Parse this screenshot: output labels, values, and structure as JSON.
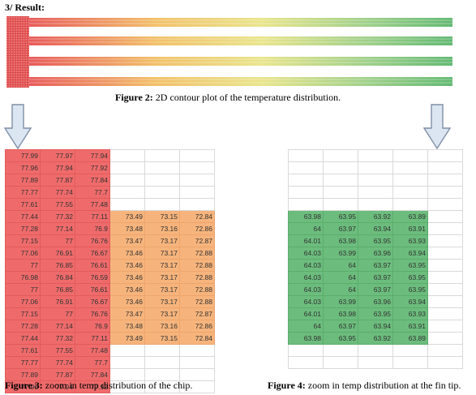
{
  "heading": "3/ Result:",
  "figure2": {
    "label": "Figure 2:",
    "text": " 2D contour plot of the temperature distribution."
  },
  "figure3": {
    "label": "Figure 3:",
    "text": " zoom in temp distribution of the chip."
  },
  "figure4": {
    "label": "Figure 4:",
    "text": " zoom in temp distribution at the fin tip."
  },
  "colors": {
    "hot": "#ef6b6b",
    "warm": "#f6b47c",
    "cool": "#6cbd7d",
    "grid": "#d9d9d9",
    "arrow_fill": "#dce6f2",
    "arrow_stroke": "#7f8fa6"
  },
  "icons": {
    "arrow": "down-arrow-icon"
  },
  "contour": {
    "fins": 4,
    "gradient": [
      "#e85b5b",
      "#f2c16a",
      "#e9e58c",
      "#9fd08a",
      "#63b973"
    ]
  },
  "chip_table": {
    "rows": [
      [
        {
          "v": "77.99",
          "c": "r"
        },
        {
          "v": "77.97",
          "c": "r"
        },
        {
          "v": "77.94",
          "c": "r"
        },
        {
          "v": "",
          "c": ""
        },
        {
          "v": "",
          "c": ""
        },
        {
          "v": "",
          "c": ""
        }
      ],
      [
        {
          "v": "77.96",
          "c": "r"
        },
        {
          "v": "77.94",
          "c": "r"
        },
        {
          "v": "77.92",
          "c": "r"
        },
        {
          "v": "",
          "c": ""
        },
        {
          "v": "",
          "c": ""
        },
        {
          "v": "",
          "c": ""
        }
      ],
      [
        {
          "v": "77.89",
          "c": "r"
        },
        {
          "v": "77.87",
          "c": "r"
        },
        {
          "v": "77.84",
          "c": "r"
        },
        {
          "v": "",
          "c": ""
        },
        {
          "v": "",
          "c": ""
        },
        {
          "v": "",
          "c": ""
        }
      ],
      [
        {
          "v": "77.77",
          "c": "r"
        },
        {
          "v": "77.74",
          "c": "r"
        },
        {
          "v": "77.7",
          "c": "r"
        },
        {
          "v": "",
          "c": ""
        },
        {
          "v": "",
          "c": ""
        },
        {
          "v": "",
          "c": ""
        }
      ],
      [
        {
          "v": "77.61",
          "c": "r"
        },
        {
          "v": "77.55",
          "c": "r"
        },
        {
          "v": "77.48",
          "c": "r"
        },
        {
          "v": "",
          "c": ""
        },
        {
          "v": "",
          "c": ""
        },
        {
          "v": "",
          "c": ""
        }
      ],
      [
        {
          "v": "77.44",
          "c": "r"
        },
        {
          "v": "77.32",
          "c": "r"
        },
        {
          "v": "77.11",
          "c": "r"
        },
        {
          "v": "73.49",
          "c": "o"
        },
        {
          "v": "73.15",
          "c": "o"
        },
        {
          "v": "72.84",
          "c": "o"
        }
      ],
      [
        {
          "v": "77.28",
          "c": "r"
        },
        {
          "v": "77.14",
          "c": "r"
        },
        {
          "v": "76.9",
          "c": "r"
        },
        {
          "v": "73.48",
          "c": "o"
        },
        {
          "v": "73.16",
          "c": "o"
        },
        {
          "v": "72.86",
          "c": "o"
        }
      ],
      [
        {
          "v": "77.15",
          "c": "r"
        },
        {
          "v": "77",
          "c": "r"
        },
        {
          "v": "76.76",
          "c": "r"
        },
        {
          "v": "73.47",
          "c": "o"
        },
        {
          "v": "73.17",
          "c": "o"
        },
        {
          "v": "72.87",
          "c": "o"
        }
      ],
      [
        {
          "v": "77.06",
          "c": "r"
        },
        {
          "v": "76.91",
          "c": "r"
        },
        {
          "v": "76.67",
          "c": "r"
        },
        {
          "v": "73.46",
          "c": "o"
        },
        {
          "v": "73.17",
          "c": "o"
        },
        {
          "v": "72.88",
          "c": "o"
        }
      ],
      [
        {
          "v": "77",
          "c": "r"
        },
        {
          "v": "76.85",
          "c": "r"
        },
        {
          "v": "76.61",
          "c": "r"
        },
        {
          "v": "73.46",
          "c": "o"
        },
        {
          "v": "73.17",
          "c": "o"
        },
        {
          "v": "72.88",
          "c": "o"
        }
      ],
      [
        {
          "v": "76.98",
          "c": "r"
        },
        {
          "v": "76.84",
          "c": "r"
        },
        {
          "v": "76.59",
          "c": "r"
        },
        {
          "v": "73.46",
          "c": "o"
        },
        {
          "v": "73.17",
          "c": "o"
        },
        {
          "v": "72.88",
          "c": "o"
        }
      ],
      [
        {
          "v": "77",
          "c": "r"
        },
        {
          "v": "76.85",
          "c": "r"
        },
        {
          "v": "76.61",
          "c": "r"
        },
        {
          "v": "73.46",
          "c": "o"
        },
        {
          "v": "73.17",
          "c": "o"
        },
        {
          "v": "72.88",
          "c": "o"
        }
      ],
      [
        {
          "v": "77.06",
          "c": "r"
        },
        {
          "v": "76.91",
          "c": "r"
        },
        {
          "v": "76.67",
          "c": "r"
        },
        {
          "v": "73.46",
          "c": "o"
        },
        {
          "v": "73.17",
          "c": "o"
        },
        {
          "v": "72.88",
          "c": "o"
        }
      ],
      [
        {
          "v": "77.15",
          "c": "r"
        },
        {
          "v": "77",
          "c": "r"
        },
        {
          "v": "76.76",
          "c": "r"
        },
        {
          "v": "73.47",
          "c": "o"
        },
        {
          "v": "73.17",
          "c": "o"
        },
        {
          "v": "72.87",
          "c": "o"
        }
      ],
      [
        {
          "v": "77.28",
          "c": "r"
        },
        {
          "v": "77.14",
          "c": "r"
        },
        {
          "v": "76.9",
          "c": "r"
        },
        {
          "v": "73.48",
          "c": "o"
        },
        {
          "v": "73.16",
          "c": "o"
        },
        {
          "v": "72.86",
          "c": "o"
        }
      ],
      [
        {
          "v": "77.44",
          "c": "r"
        },
        {
          "v": "77.32",
          "c": "r"
        },
        {
          "v": "77.11",
          "c": "r"
        },
        {
          "v": "73.49",
          "c": "o"
        },
        {
          "v": "73.15",
          "c": "o"
        },
        {
          "v": "72.84",
          "c": "o"
        }
      ],
      [
        {
          "v": "77.61",
          "c": "r"
        },
        {
          "v": "77.55",
          "c": "r"
        },
        {
          "v": "77.48",
          "c": "r"
        },
        {
          "v": "",
          "c": ""
        },
        {
          "v": "",
          "c": ""
        },
        {
          "v": "",
          "c": ""
        }
      ],
      [
        {
          "v": "77.77",
          "c": "r"
        },
        {
          "v": "77.74",
          "c": "r"
        },
        {
          "v": "77.7",
          "c": "r"
        },
        {
          "v": "",
          "c": ""
        },
        {
          "v": "",
          "c": ""
        },
        {
          "v": "",
          "c": ""
        }
      ],
      [
        {
          "v": "77.89",
          "c": "r"
        },
        {
          "v": "77.87",
          "c": "r"
        },
        {
          "v": "77.84",
          "c": "r"
        },
        {
          "v": "",
          "c": ""
        },
        {
          "v": "",
          "c": ""
        },
        {
          "v": "",
          "c": ""
        }
      ],
      [
        {
          "v": "77.96",
          "c": "r"
        },
        {
          "v": "77.94",
          "c": "r"
        },
        {
          "v": "77.92",
          "c": "r"
        },
        {
          "v": "",
          "c": ""
        },
        {
          "v": "",
          "c": ""
        },
        {
          "v": "",
          "c": ""
        }
      ]
    ]
  },
  "fin_table": {
    "rows": [
      [
        {
          "v": "",
          "c": ""
        },
        {
          "v": "",
          "c": ""
        },
        {
          "v": "",
          "c": ""
        },
        {
          "v": "",
          "c": ""
        },
        {
          "v": "",
          "c": ""
        }
      ],
      [
        {
          "v": "",
          "c": ""
        },
        {
          "v": "",
          "c": ""
        },
        {
          "v": "",
          "c": ""
        },
        {
          "v": "",
          "c": ""
        },
        {
          "v": "",
          "c": ""
        }
      ],
      [
        {
          "v": "",
          "c": ""
        },
        {
          "v": "",
          "c": ""
        },
        {
          "v": "",
          "c": ""
        },
        {
          "v": "",
          "c": ""
        },
        {
          "v": "",
          "c": ""
        }
      ],
      [
        {
          "v": "",
          "c": ""
        },
        {
          "v": "",
          "c": ""
        },
        {
          "v": "",
          "c": ""
        },
        {
          "v": "",
          "c": ""
        },
        {
          "v": "",
          "c": ""
        }
      ],
      [
        {
          "v": "",
          "c": ""
        },
        {
          "v": "",
          "c": ""
        },
        {
          "v": "",
          "c": ""
        },
        {
          "v": "",
          "c": ""
        },
        {
          "v": "",
          "c": ""
        }
      ],
      [
        {
          "v": "63.98",
          "c": "g"
        },
        {
          "v": "63.95",
          "c": "g"
        },
        {
          "v": "63.92",
          "c": "g"
        },
        {
          "v": "63.89",
          "c": "g"
        },
        {
          "v": "",
          "c": ""
        }
      ],
      [
        {
          "v": "64",
          "c": "g"
        },
        {
          "v": "63.97",
          "c": "g"
        },
        {
          "v": "63.94",
          "c": "g"
        },
        {
          "v": "63.91",
          "c": "g"
        },
        {
          "v": "",
          "c": ""
        }
      ],
      [
        {
          "v": "64.01",
          "c": "g"
        },
        {
          "v": "63.98",
          "c": "g"
        },
        {
          "v": "63.95",
          "c": "g"
        },
        {
          "v": "63.93",
          "c": "g"
        },
        {
          "v": "",
          "c": ""
        }
      ],
      [
        {
          "v": "64.03",
          "c": "g"
        },
        {
          "v": "63.99",
          "c": "g"
        },
        {
          "v": "63.96",
          "c": "g"
        },
        {
          "v": "63.94",
          "c": "g"
        },
        {
          "v": "",
          "c": ""
        }
      ],
      [
        {
          "v": "64.03",
          "c": "g"
        },
        {
          "v": "64",
          "c": "g"
        },
        {
          "v": "63.97",
          "c": "g"
        },
        {
          "v": "63.95",
          "c": "g"
        },
        {
          "v": "",
          "c": ""
        }
      ],
      [
        {
          "v": "64.03",
          "c": "g"
        },
        {
          "v": "64",
          "c": "g"
        },
        {
          "v": "63.97",
          "c": "g"
        },
        {
          "v": "63.95",
          "c": "g"
        },
        {
          "v": "",
          "c": ""
        }
      ],
      [
        {
          "v": "64.03",
          "c": "g"
        },
        {
          "v": "64",
          "c": "g"
        },
        {
          "v": "63.97",
          "c": "g"
        },
        {
          "v": "63.95",
          "c": "g"
        },
        {
          "v": "",
          "c": ""
        }
      ],
      [
        {
          "v": "64.03",
          "c": "g"
        },
        {
          "v": "63.99",
          "c": "g"
        },
        {
          "v": "63.96",
          "c": "g"
        },
        {
          "v": "63.94",
          "c": "g"
        },
        {
          "v": "",
          "c": ""
        }
      ],
      [
        {
          "v": "64.01",
          "c": "g"
        },
        {
          "v": "63.98",
          "c": "g"
        },
        {
          "v": "63.95",
          "c": "g"
        },
        {
          "v": "63.93",
          "c": "g"
        },
        {
          "v": "",
          "c": ""
        }
      ],
      [
        {
          "v": "64",
          "c": "g"
        },
        {
          "v": "63.97",
          "c": "g"
        },
        {
          "v": "63.94",
          "c": "g"
        },
        {
          "v": "63.91",
          "c": "g"
        },
        {
          "v": "",
          "c": ""
        }
      ],
      [
        {
          "v": "63.98",
          "c": "g"
        },
        {
          "v": "63.95",
          "c": "g"
        },
        {
          "v": "63.92",
          "c": "g"
        },
        {
          "v": "63.89",
          "c": "g"
        },
        {
          "v": "",
          "c": ""
        }
      ],
      [
        {
          "v": "",
          "c": ""
        },
        {
          "v": "",
          "c": ""
        },
        {
          "v": "",
          "c": ""
        },
        {
          "v": "",
          "c": ""
        },
        {
          "v": "",
          "c": ""
        }
      ],
      [
        {
          "v": "",
          "c": ""
        },
        {
          "v": "",
          "c": ""
        },
        {
          "v": "",
          "c": ""
        },
        {
          "v": "",
          "c": ""
        },
        {
          "v": "",
          "c": ""
        }
      ]
    ]
  }
}
